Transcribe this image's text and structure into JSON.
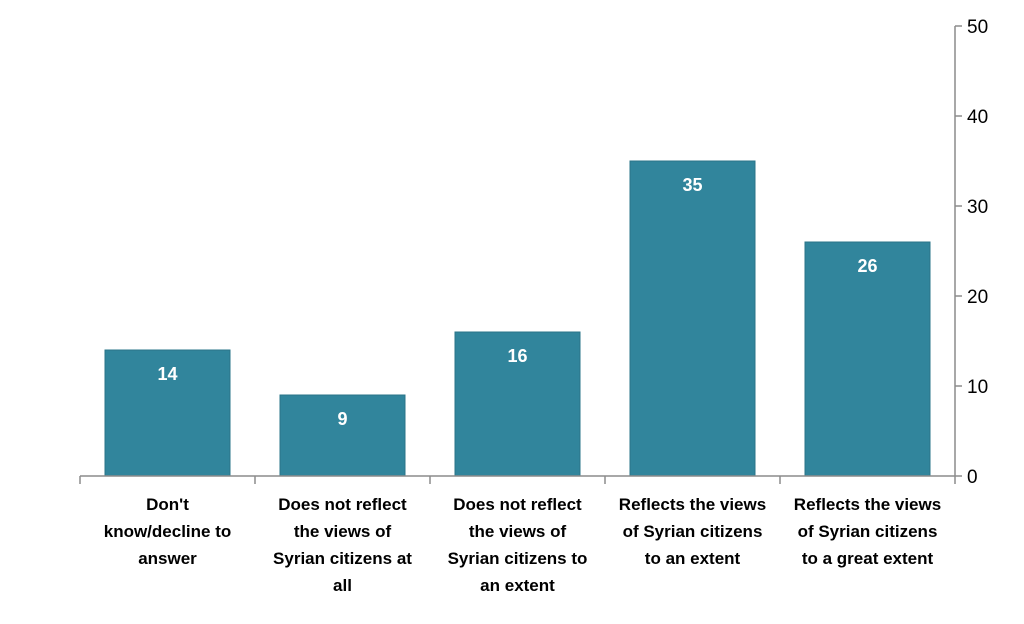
{
  "chart_data": {
    "type": "bar",
    "categories": [
      [
        "Don't",
        "know/decline to",
        "answer"
      ],
      [
        "Does not reflect",
        "the views of",
        "Syrian citizens at",
        "all"
      ],
      [
        "Does not reflect",
        "the views of",
        "Syrian citizens to",
        "an extent"
      ],
      [
        "Reflects the views",
        "of Syrian citizens",
        "to an extent"
      ],
      [
        "Reflects the views",
        "of Syrian citizens",
        "to a great extent"
      ]
    ],
    "values": [
      14,
      9,
      16,
      35,
      26
    ],
    "ylim": [
      0,
      50
    ],
    "yticks": [
      0,
      10,
      20,
      30,
      40,
      50
    ],
    "y_axis_position": "right",
    "data_labels": true,
    "grid": false,
    "bar_color": "#31859c"
  }
}
